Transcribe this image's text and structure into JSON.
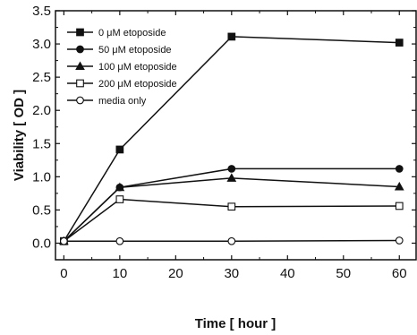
{
  "chart_data": {
    "type": "line",
    "xlabel": "Time [ hour ]",
    "ylabel": "Viability [ OD ]",
    "xlim": [
      -1.5,
      63
    ],
    "ylim": [
      -0.25,
      3.5
    ],
    "xticks": [
      0,
      10,
      20,
      30,
      40,
      50,
      60
    ],
    "yticks": [
      0.0,
      0.5,
      1.0,
      1.5,
      2.0,
      2.5,
      3.0,
      3.5
    ],
    "ytick_labels": [
      "0.0",
      "0.5",
      "1.0",
      "1.5",
      "2.0",
      "2.5",
      "3.0",
      "3.5"
    ],
    "legend_position": "top-left",
    "x": [
      0,
      10,
      30,
      60
    ],
    "series": [
      {
        "name": "0 μM etoposide",
        "marker": "square-filled",
        "values": [
          0.03,
          1.41,
          3.11,
          3.02
        ]
      },
      {
        "name": "50 μM etoposide",
        "marker": "circle-filled",
        "values": [
          0.03,
          0.84,
          1.12,
          1.12
        ]
      },
      {
        "name": "100 μM etoposide",
        "marker": "triangle-filled",
        "values": [
          0.03,
          0.84,
          0.98,
          0.85
        ]
      },
      {
        "name": "200 μM etoposide",
        "marker": "square-open",
        "values": [
          0.03,
          0.66,
          0.55,
          0.56
        ]
      },
      {
        "name": "media only",
        "marker": "circle-open",
        "values": [
          0.03,
          0.03,
          0.03,
          0.04
        ]
      }
    ]
  }
}
